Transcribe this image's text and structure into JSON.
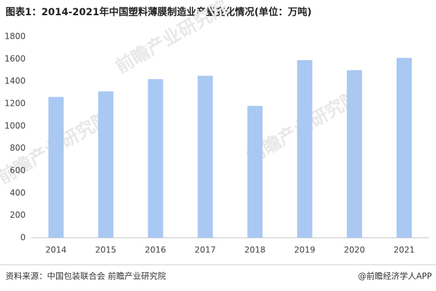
{
  "chart_data": {
    "type": "bar",
    "title": "图表1：2014-2021年中国塑料薄膜制造业产量变化情况(单位：万吨)",
    "categories": [
      "2014",
      "2015",
      "2016",
      "2017",
      "2018",
      "2019",
      "2020",
      "2021"
    ],
    "values": [
      1260,
      1310,
      1420,
      1450,
      1180,
      1590,
      1500,
      1610
    ],
    "color": "#a9c8f2",
    "ylim": [
      0,
      1800
    ],
    "yticks": [
      0,
      200,
      400,
      600,
      800,
      1000,
      1200,
      1400,
      1600,
      1800
    ],
    "grid": false,
    "source": "资料来源：中国包装联合会 前瞻产业研究院",
    "credit": "@前瞻经济学人APP",
    "watermark": "前瞻产业研究院"
  }
}
